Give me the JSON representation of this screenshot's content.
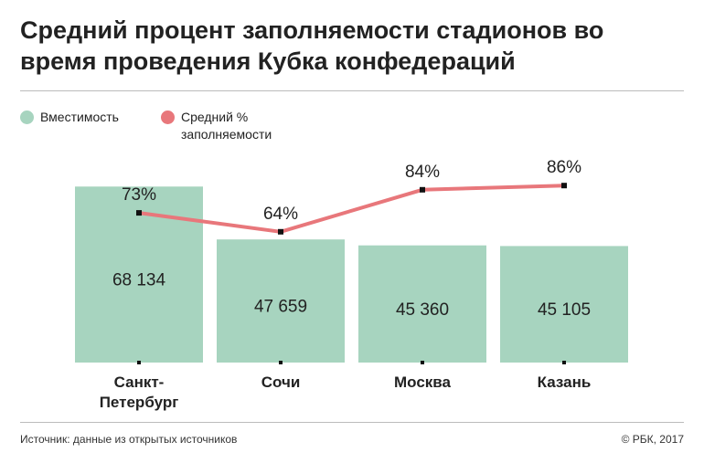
{
  "chart_data": {
    "type": "bar",
    "title": "Средний процент заполняемости стадионов во время проведения Кубка конфедераций",
    "categories": [
      "Санкт-Петербург",
      "Сочи",
      "Москва",
      "Казань"
    ],
    "series": [
      {
        "name": "Вместимость",
        "type": "bar",
        "color": "#a7d4bf",
        "values": [
          68134,
          47659,
          45360,
          45105
        ],
        "value_labels": [
          "68 134",
          "47 659",
          "45 360",
          "45 105"
        ]
      },
      {
        "name": "Средний % заполняемости",
        "type": "line",
        "axis": "y2",
        "color": "#e8777b",
        "values": [
          73,
          64,
          84,
          86
        ],
        "value_labels": [
          "73%",
          "64%",
          "84%",
          "86%"
        ]
      }
    ],
    "ylim": [
      0,
      70000
    ],
    "y2lim": [
      0,
      100
    ],
    "source": "Источник: данные из открытых источников",
    "credit": "© РБК, 2017"
  }
}
